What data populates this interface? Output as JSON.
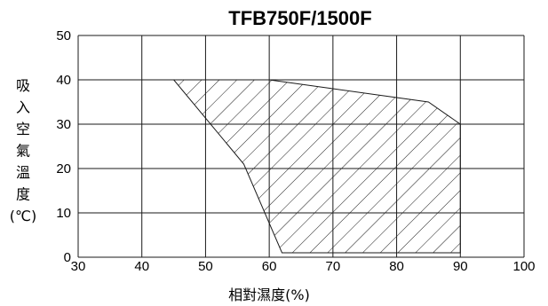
{
  "chart_data": {
    "type": "area",
    "title": "TFB750F/1500F",
    "xlabel": "相對濕度(%)",
    "ylabel": "吸入空氣溫度(℃)",
    "xlim": [
      30,
      100
    ],
    "ylim": [
      0,
      50
    ],
    "xticks": [
      30,
      40,
      50,
      60,
      70,
      80,
      90,
      100
    ],
    "yticks": [
      0,
      10,
      20,
      30,
      40,
      50
    ],
    "grid": true,
    "fill_style": "diagonal-hatch",
    "region": [
      {
        "x": 45,
        "y": 40
      },
      {
        "x": 60,
        "y": 40
      },
      {
        "x": 70,
        "y": 38
      },
      {
        "x": 85,
        "y": 35
      },
      {
        "x": 90,
        "y": 30
      },
      {
        "x": 90,
        "y": 1
      },
      {
        "x": 62,
        "y": 1
      },
      {
        "x": 56,
        "y": 21
      }
    ]
  }
}
